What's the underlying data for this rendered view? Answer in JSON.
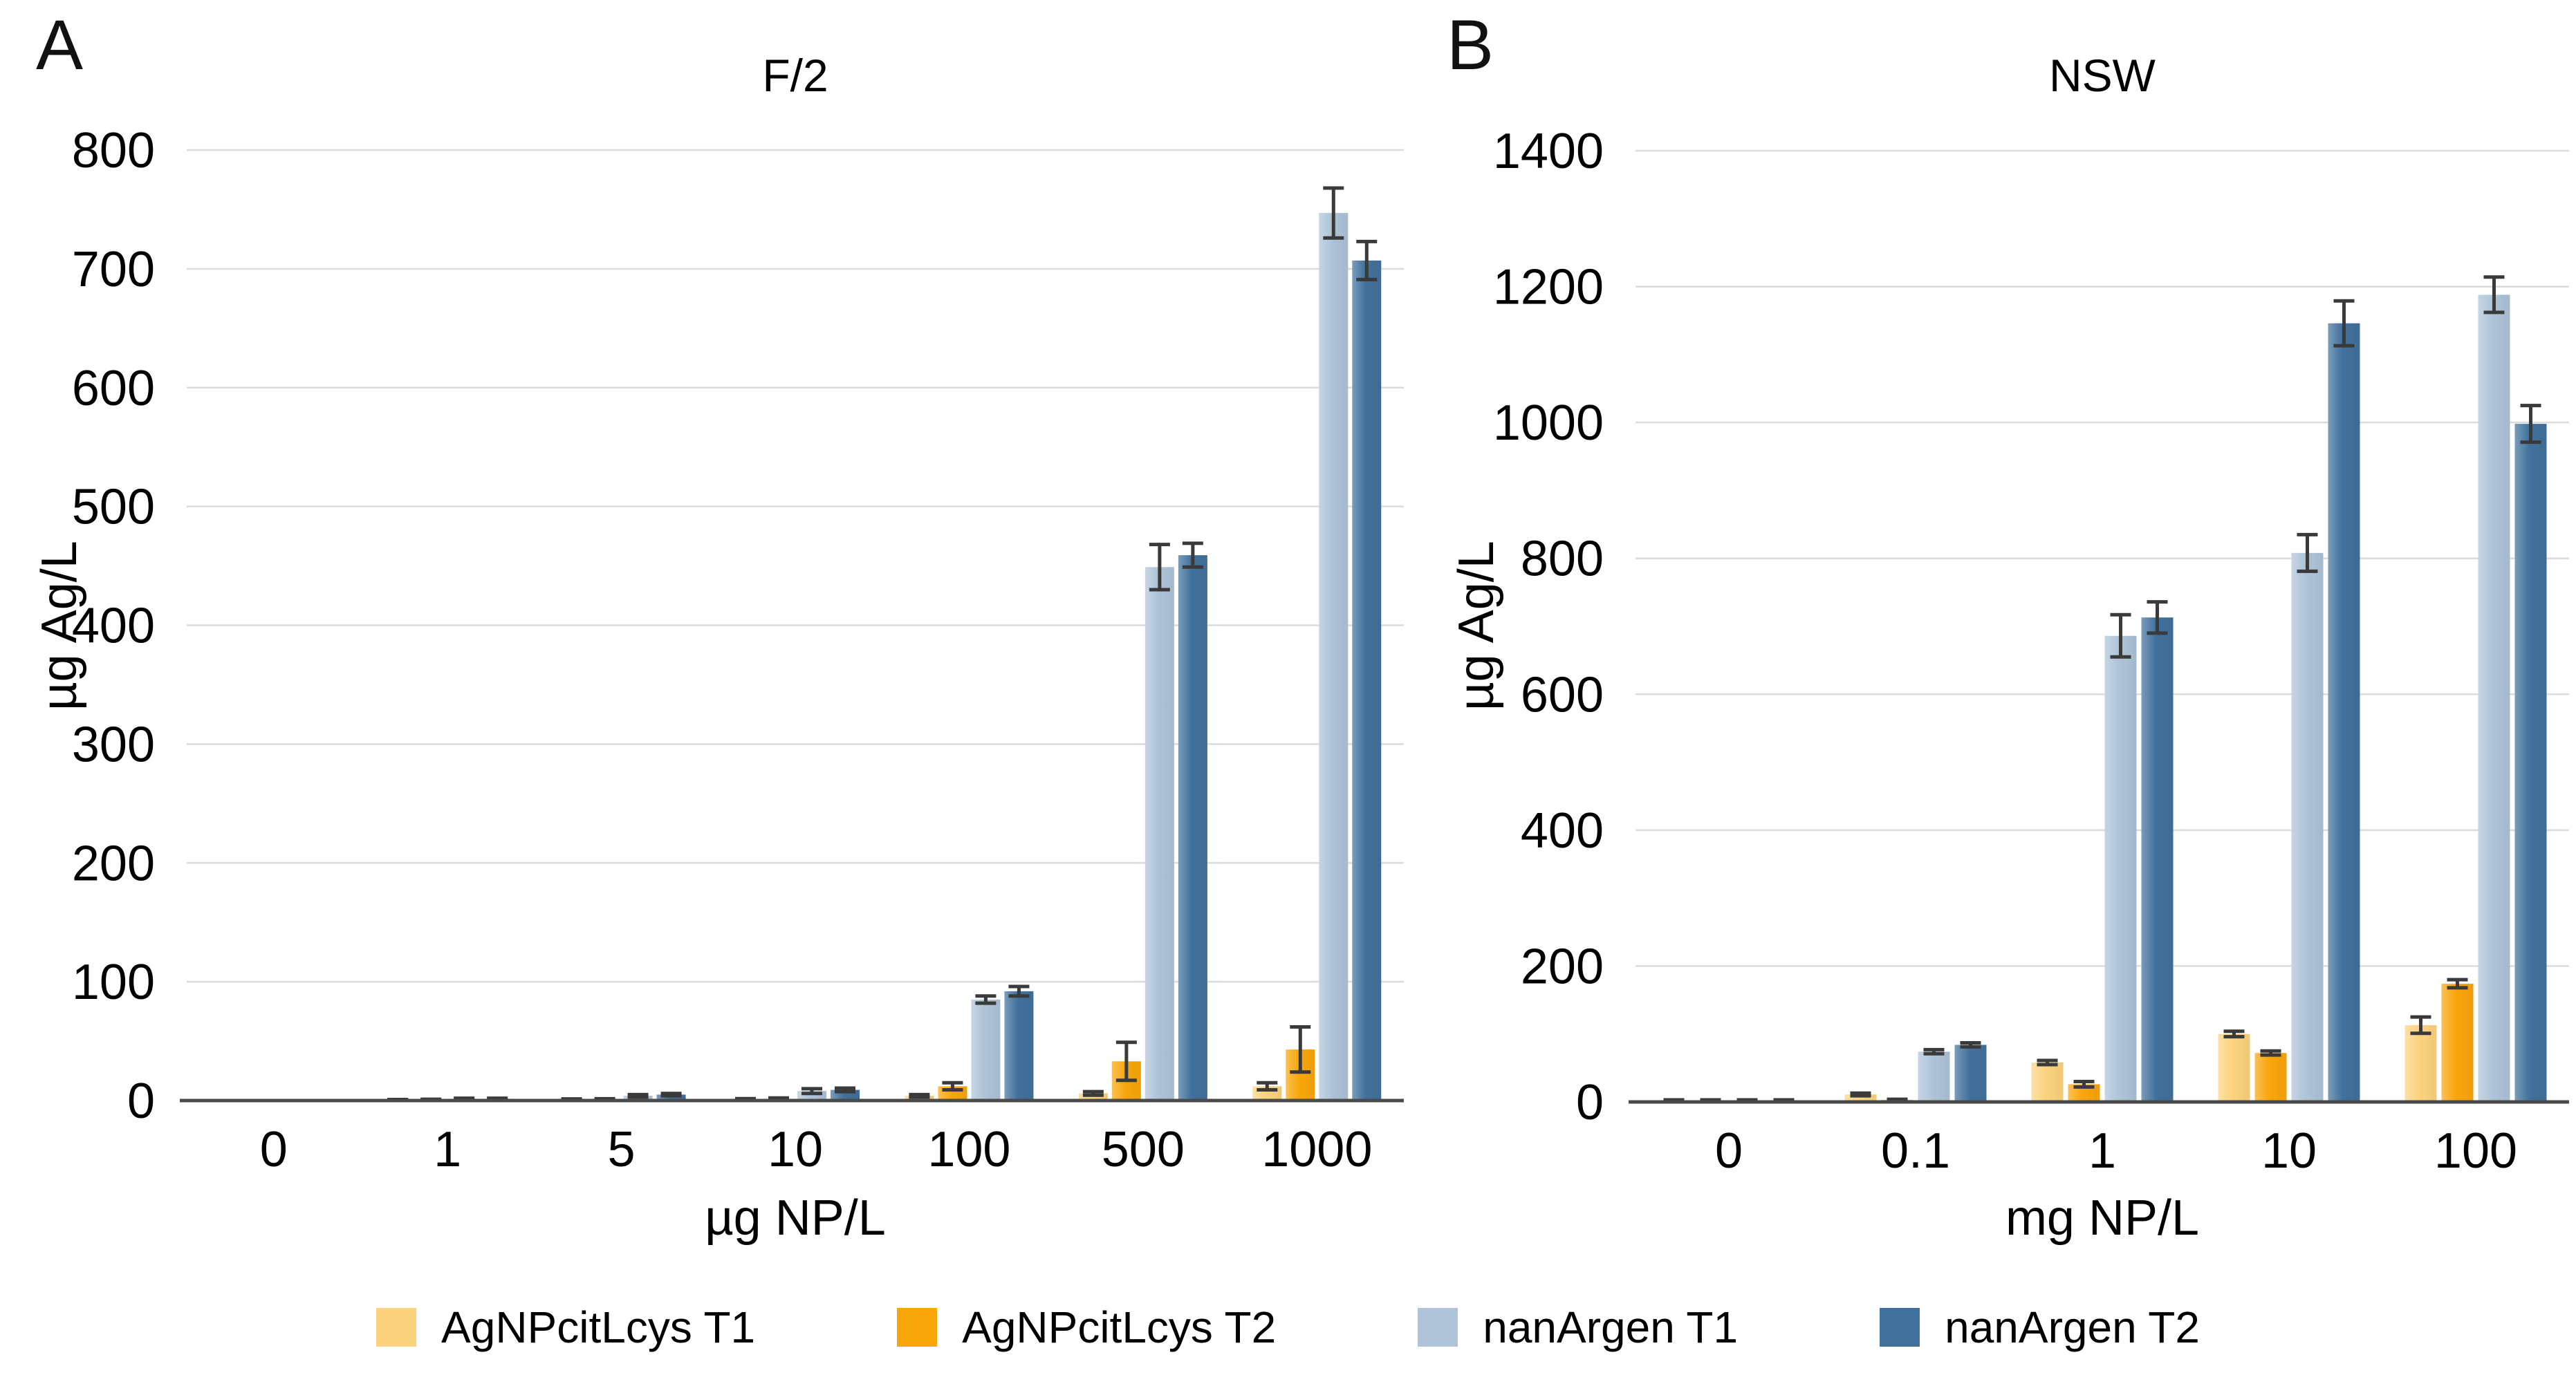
{
  "figure": {
    "colors": {
      "gridline": "#DBDBDB",
      "axis_line": "#4A4A4A",
      "error_bar": "#3A3A3A",
      "text": "#000000"
    },
    "legend": [
      {
        "label": "AgNPcitLcys T1",
        "color": "#FBD37E"
      },
      {
        "label": "AgNPcitLcys T2",
        "color": "#F9A60A"
      },
      {
        "label": "nanArgen T1",
        "color": "#AEC3D8"
      },
      {
        "label": "nanArgen T2",
        "color": "#41719C"
      }
    ]
  },
  "chart_data": [
    {
      "type": "bar",
      "panel_label": "A",
      "title": "F/2",
      "ylabel": "µg Ag/L",
      "xlabel": "µg NP/L",
      "ylim": [
        0,
        800
      ],
      "ystep": 100,
      "grid": true,
      "legend_position": "bottom",
      "categories": [
        "0",
        "1",
        "5",
        "10",
        "100",
        "500",
        "1000"
      ],
      "series": [
        {
          "name": "AgNPcitLcys T1",
          "color": "#FBD37E",
          "values": [
            0,
            0.5,
            1,
            1,
            4,
            6,
            12
          ],
          "errors": [
            0,
            0.4,
            0.4,
            0.6,
            1,
            1.5,
            3
          ]
        },
        {
          "name": "AgNPcitLcys T2",
          "color": "#F9A60A",
          "values": [
            0,
            0.7,
            1,
            1.5,
            12,
            33,
            43
          ],
          "errors": [
            0,
            0.4,
            0.5,
            0.7,
            3,
            16,
            19
          ]
        },
        {
          "name": "nanArgen T1",
          "color": "#AEC3D8",
          "values": [
            0,
            1.5,
            4,
            8,
            85,
            449,
            747
          ],
          "errors": [
            0,
            0.5,
            1,
            2,
            3,
            19,
            21
          ]
        },
        {
          "name": "nanArgen T2",
          "color": "#41719C",
          "values": [
            0,
            1.5,
            5,
            9,
            92,
            459,
            707
          ],
          "errors": [
            0,
            0.5,
            1,
            1.5,
            4,
            10,
            16
          ]
        }
      ]
    },
    {
      "type": "bar",
      "panel_label": "B",
      "title": "NSW",
      "ylabel": "µg Ag/L",
      "xlabel": "mg NP/L",
      "ylim": [
        0,
        1400
      ],
      "ystep": 200,
      "grid": true,
      "legend_position": "bottom",
      "categories": [
        "0",
        "0.1",
        "1",
        "10",
        "100"
      ],
      "series": [
        {
          "name": "AgNPcitLcys T1",
          "color": "#FBD37E",
          "values": [
            2,
            11,
            58,
            100,
            113
          ],
          "errors": [
            1,
            2,
            3,
            4,
            12
          ]
        },
        {
          "name": "AgNPcitLcys T2",
          "color": "#F9A60A",
          "values": [
            2,
            3,
            26,
            72,
            174
          ],
          "errors": [
            1,
            1,
            4,
            3,
            6
          ]
        },
        {
          "name": "nanArgen T1",
          "color": "#AEC3D8",
          "values": [
            2,
            74,
            686,
            808,
            1188
          ],
          "errors": [
            1,
            3,
            31,
            27,
            26
          ]
        },
        {
          "name": "nanArgen T2",
          "color": "#41719C",
          "values": [
            2,
            84,
            713,
            1146,
            998
          ],
          "errors": [
            1,
            3,
            23,
            33,
            27
          ]
        }
      ]
    }
  ]
}
